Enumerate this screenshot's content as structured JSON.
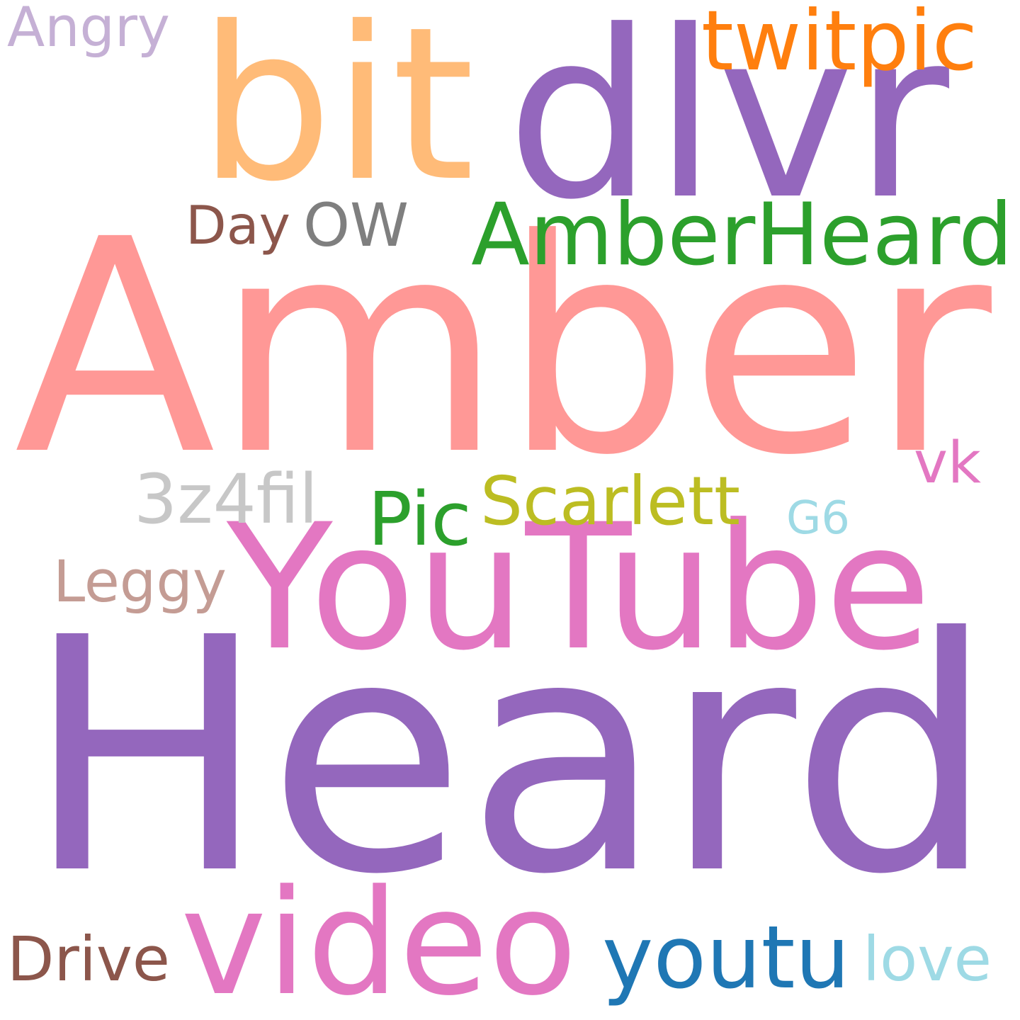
{
  "words": [
    {
      "text": "Heard",
      "color": "#9467bd"
    },
    {
      "text": "Amber",
      "color": "#ff9896"
    },
    {
      "text": "dlvr",
      "color": "#9467bd"
    },
    {
      "text": "bit",
      "color": "#ffbb78"
    },
    {
      "text": "YouTube",
      "color": "#e377c2"
    },
    {
      "text": "AmberHeard",
      "color": "#2ca02c"
    },
    {
      "text": "video",
      "color": "#e377c2"
    },
    {
      "text": "youtu",
      "color": "#1f77b4"
    },
    {
      "text": "twitpic",
      "color": "#ff7f0e"
    },
    {
      "text": "OW",
      "color": "#7f7f7f"
    },
    {
      "text": "Day",
      "color": "#8c564b"
    },
    {
      "text": "Scarlett",
      "color": "#bcbd22"
    },
    {
      "text": "Pic",
      "color": "#2ca02c"
    },
    {
      "text": "3z4fil",
      "color": "#c7c7c7"
    },
    {
      "text": "Leggy",
      "color": "#c49c94"
    },
    {
      "text": "Angry",
      "color": "#c5b0d5"
    },
    {
      "text": "vk",
      "color": "#e377c2"
    },
    {
      "text": "G6",
      "color": "#9edae5"
    },
    {
      "text": "Drive",
      "color": "#8c564b"
    },
    {
      "text": "love",
      "color": "#9edae5"
    }
  ]
}
